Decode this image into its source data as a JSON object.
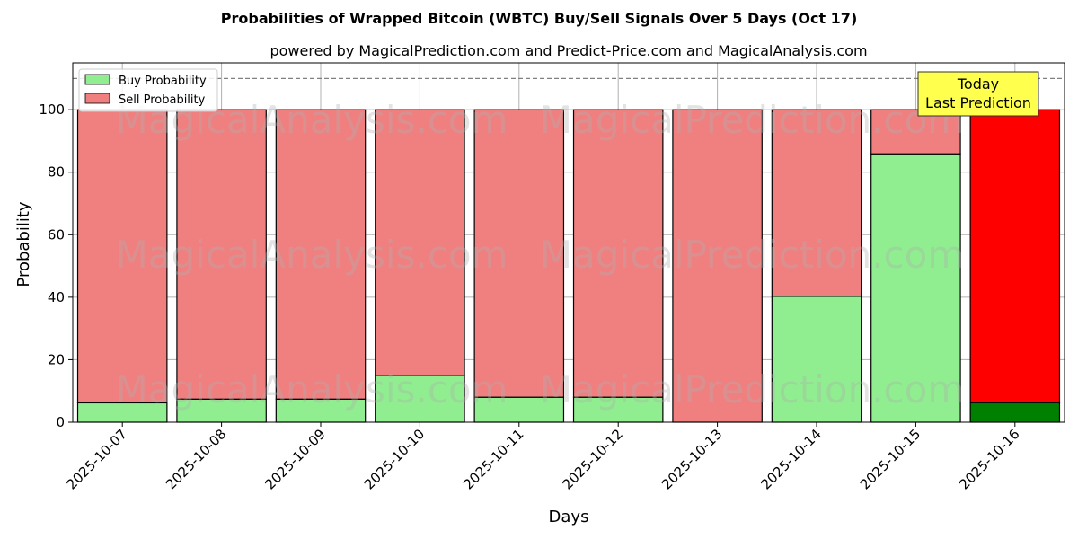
{
  "chart_data": {
    "type": "bar",
    "stacked": true,
    "title": "Probabilities of Wrapped Bitcoin (WBTC) Buy/Sell Signals Over 5 Days (Oct 17)",
    "subtitle": "powered by MagicalPrediction.com and Predict-Price.com and MagicalAnalysis.com",
    "xlabel": "Days",
    "ylabel": "Probability",
    "ylim": [
      0,
      115
    ],
    "yticks": [
      0,
      20,
      40,
      60,
      80,
      100
    ],
    "grid": true,
    "legend_position": "top-left",
    "reference_line": 110,
    "categories": [
      "2025-10-07",
      "2025-10-08",
      "2025-10-09",
      "2025-10-10",
      "2025-10-11",
      "2025-10-12",
      "2025-10-13",
      "2025-10-14",
      "2025-10-15",
      "2025-10-16"
    ],
    "series": [
      {
        "name": "Buy Probability",
        "color": "#90ee90",
        "highlight_color": "#008000",
        "values": [
          6.2,
          7.4,
          7.4,
          14.9,
          8.0,
          8.0,
          0.0,
          40.3,
          85.9,
          6.2
        ]
      },
      {
        "name": "Sell Probability",
        "color": "#f08080",
        "highlight_color": "#ff0000",
        "values": [
          93.8,
          92.6,
          92.6,
          85.1,
          92.0,
          92.0,
          100.0,
          59.7,
          14.1,
          93.8
        ]
      }
    ],
    "highlight_index": 9,
    "annotation": {
      "line1": "Today",
      "line2": "Last Prediction",
      "color": "#ffff4d"
    },
    "watermarks": [
      "MagicalAnalysis.com",
      "MagicalPrediction.com"
    ]
  }
}
